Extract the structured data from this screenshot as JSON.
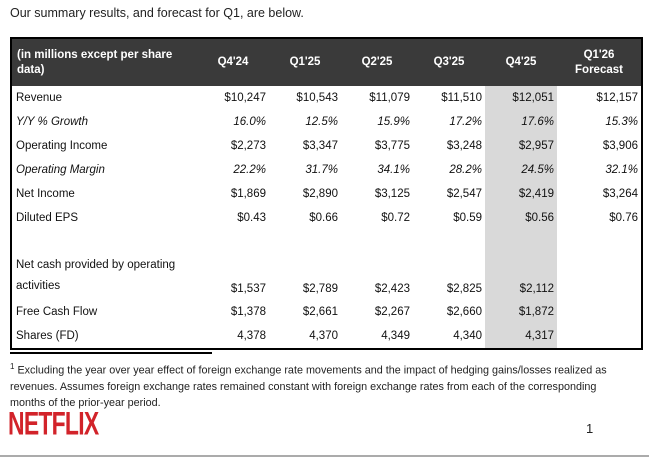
{
  "colors": {
    "header_bg": "#3a3a3a",
    "header_text": "#ffffff",
    "highlight_column_bg": "#d9d9d9",
    "brand_red": "#d2232a",
    "body_text": "#111111"
  },
  "intro": "Our summary results, and forecast for Q1, are below.",
  "table": {
    "header": [
      "(in millions except per share data)",
      "Q4'24",
      "Q1'25",
      "Q2'25",
      "Q3'25",
      "Q4'25",
      "Q1'26 Forecast"
    ],
    "highlight_column": "Q4'25",
    "highlight_value_index": 4,
    "rows": [
      {
        "label": "Revenue",
        "style": "normal",
        "values": [
          "$10,247",
          "$10,543",
          "$11,079",
          "$11,510",
          "$12,051",
          "$12,157"
        ]
      },
      {
        "label": "Y/Y % Growth",
        "style": "italic",
        "values": [
          "16.0%",
          "12.5%",
          "15.9%",
          "17.2%",
          "17.6%",
          "15.3%"
        ]
      },
      {
        "label": "Operating Income",
        "style": "normal",
        "values": [
          "$2,273",
          "$3,347",
          "$3,775",
          "$3,248",
          "$2,957",
          "$3,906"
        ]
      },
      {
        "label": "Operating Margin",
        "style": "italic",
        "values": [
          "22.2%",
          "31.7%",
          "34.1%",
          "28.2%",
          "24.5%",
          "32.1%"
        ]
      },
      {
        "label": "Net Income",
        "style": "normal",
        "values": [
          "$1,869",
          "$2,890",
          "$3,125",
          "$2,547",
          "$2,419",
          "$3,264"
        ]
      },
      {
        "label": "Diluted EPS",
        "style": "normal",
        "values": [
          "$0.43",
          "$0.66",
          "$0.72",
          "$0.59",
          "$0.56",
          "$0.76"
        ]
      },
      {
        "label": "",
        "style": "spacer",
        "values": [
          "",
          "",
          "",
          "",
          "",
          ""
        ]
      },
      {
        "label": "Net cash provided by operating activities",
        "style": "twoline",
        "values": [
          "$1,537",
          "$2,789",
          "$2,423",
          "$2,825",
          "$2,112",
          ""
        ]
      },
      {
        "label": "Free Cash Flow",
        "style": "normal",
        "values": [
          "$1,378",
          "$2,661",
          "$2,267",
          "$2,660",
          "$1,872",
          ""
        ]
      },
      {
        "label": "Shares (FD)",
        "style": "normal",
        "values": [
          "4,378",
          "4,370",
          "4,349",
          "4,340",
          "4,317",
          ""
        ]
      }
    ]
  },
  "footnote": {
    "marker": "1",
    "text": "Excluding the year over year effect of foreign exchange rate movements and the impact of hedging gains/losses realized as revenues. Assumes foreign exchange rates remained constant with foreign exchange rates from each of the corresponding months of the prior-year period."
  },
  "brand": "NETFLIX",
  "page_number": "1"
}
